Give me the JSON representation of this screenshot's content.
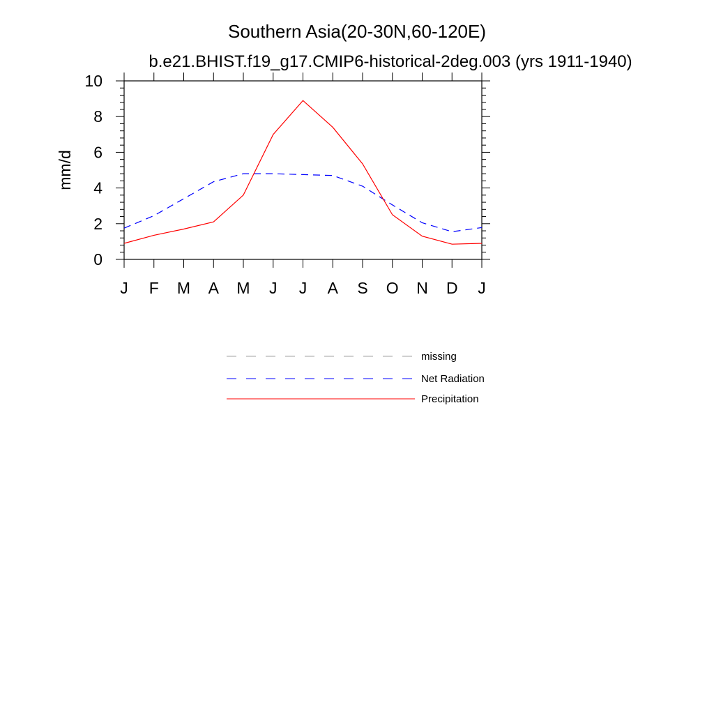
{
  "chart_data": {
    "type": "line",
    "title": "Southern Asia(20-30N,60-120E)",
    "subtitle": "b.e21.BHIST.f19_g17.CMIP6-historical-2deg.003 (yrs 1911-1940)",
    "xlabel": "",
    "ylabel": "mm/d",
    "ylim": [
      0,
      10
    ],
    "yticks": [
      0,
      2,
      4,
      6,
      8,
      10
    ],
    "categories": [
      "J",
      "F",
      "M",
      "A",
      "M",
      "J",
      "J",
      "A",
      "S",
      "O",
      "N",
      "D",
      "J"
    ],
    "grid": false,
    "legend_position": "bottom",
    "series": [
      {
        "name": "Net Radiation",
        "color": "#0000ff",
        "style": "dashed",
        "values": [
          1.75,
          2.45,
          3.4,
          4.35,
          4.8,
          4.8,
          4.75,
          4.7,
          4.1,
          3.05,
          2.05,
          1.55,
          1.78
        ]
      },
      {
        "name": "Precipitation",
        "color": "#ff0000",
        "style": "solid",
        "values": [
          0.9,
          1.35,
          1.7,
          2.1,
          3.6,
          7.0,
          8.9,
          7.4,
          5.35,
          2.5,
          1.3,
          0.85,
          0.9
        ]
      }
    ],
    "legend": [
      {
        "label": "missing",
        "color": "#a0a0a0",
        "style": "dashed"
      },
      {
        "label": "Net Radiation",
        "color": "#0000ff",
        "style": "dashed"
      },
      {
        "label": "Precipitation",
        "color": "#ff0000",
        "style": "solid"
      }
    ]
  }
}
